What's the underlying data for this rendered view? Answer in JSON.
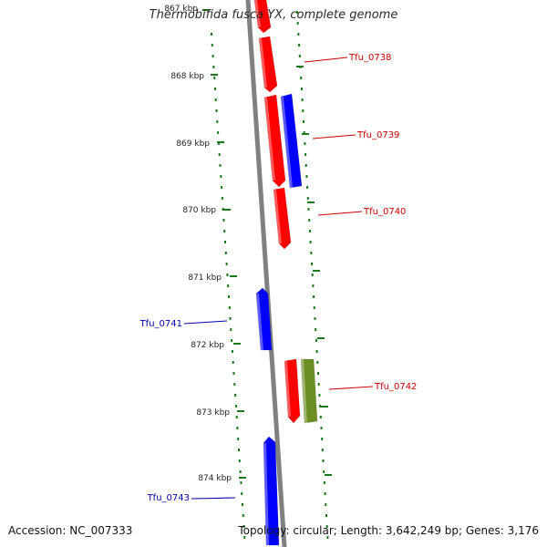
{
  "title": "Thermobifida fusca YX, complete genome",
  "accession": "Accession: NC_007333",
  "topology": "Topology: circular; Length: 3,642,249 bp; Genes: 3,176",
  "colors": {
    "forward_strand": "#ff0000",
    "reverse_strand": "#0000ff",
    "other_feature": "#6b8e23",
    "backbone": "#808080",
    "tick": "#1a7a1a",
    "forward_label": "#cc0000",
    "reverse_label": "#0000aa"
  },
  "ticks": [
    {
      "label": "867 kbp"
    },
    {
      "label": "868 kbp"
    },
    {
      "label": "869 kbp"
    },
    {
      "label": "870 kbp"
    },
    {
      "label": "871 kbp"
    },
    {
      "label": "872 kbp"
    },
    {
      "label": "873 kbp"
    },
    {
      "label": "874 kbp"
    }
  ],
  "genes": [
    {
      "label": "Tfu_0738",
      "strand": "forward"
    },
    {
      "label": "Tfu_0739",
      "strand": "forward"
    },
    {
      "label": "Tfu_0740",
      "strand": "forward"
    },
    {
      "label": "Tfu_0741",
      "strand": "reverse"
    },
    {
      "label": "Tfu_0742",
      "strand": "forward"
    },
    {
      "label": "Tfu_0743",
      "strand": "reverse"
    }
  ]
}
